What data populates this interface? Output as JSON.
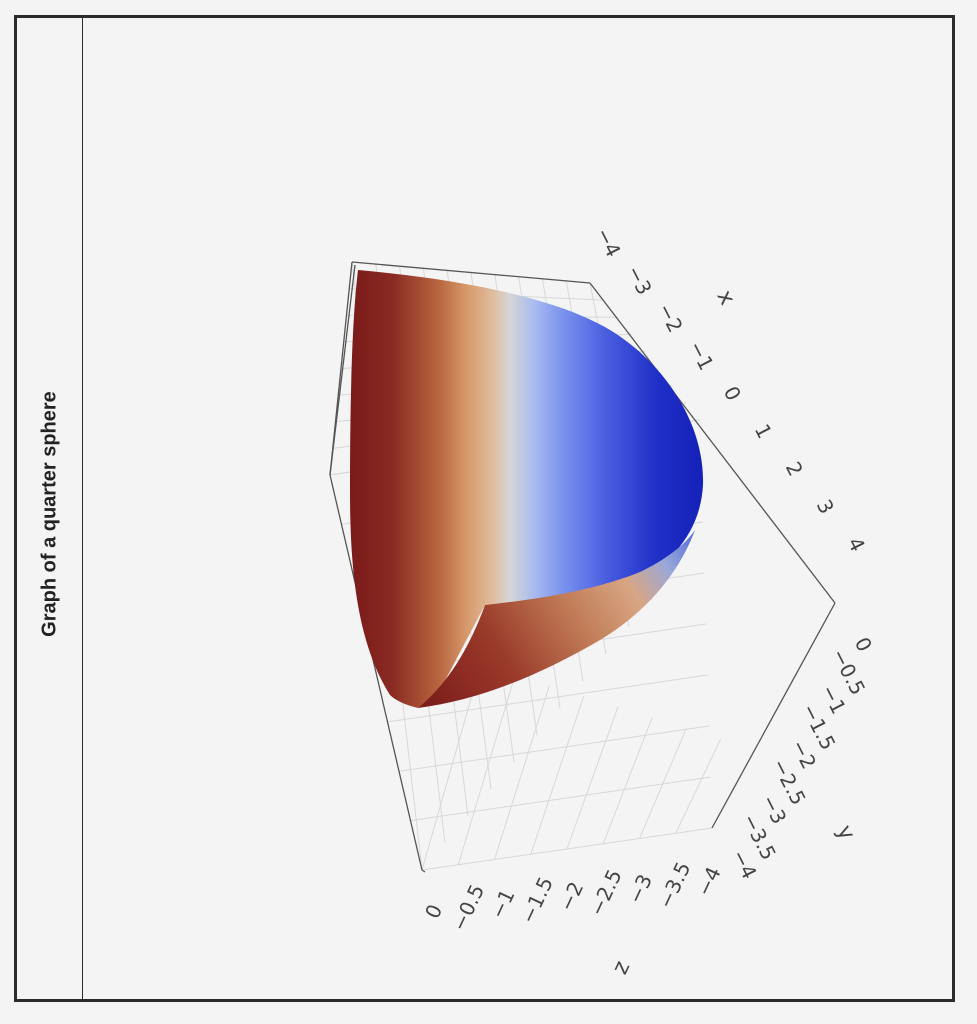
{
  "figure": {
    "title": "Graph of a quarter sphere"
  },
  "chart_data": {
    "type": "surface",
    "title": "Graph of a quarter sphere",
    "surface": "quarter sphere of radius 4 (x in [-4,4], y in [-4,0], z in [-4,0])",
    "colorscale": "coolwarm",
    "colors": {
      "low": "#7a1a1a",
      "mid": "#d6d6d6",
      "high": "#1420b8"
    },
    "axes": {
      "x": {
        "label": "x",
        "ticks": [
          "−4",
          "−3",
          "−2",
          "−1",
          "0",
          "1",
          "2",
          "3",
          "4"
        ],
        "range": [
          -4,
          4
        ]
      },
      "y": {
        "label": "y",
        "ticks": [
          "0",
          "−0.5",
          "−1",
          "−1.5",
          "−2",
          "−2.5",
          "−3",
          "−3.5",
          "−4"
        ],
        "range": [
          -4,
          0
        ]
      },
      "z": {
        "label": "z",
        "ticks": [
          "0",
          "−0.5",
          "−1",
          "−1.5",
          "−2",
          "−2.5",
          "−3",
          "−3.5",
          "−4"
        ],
        "range": [
          -4,
          0
        ]
      }
    },
    "grid": true
  }
}
